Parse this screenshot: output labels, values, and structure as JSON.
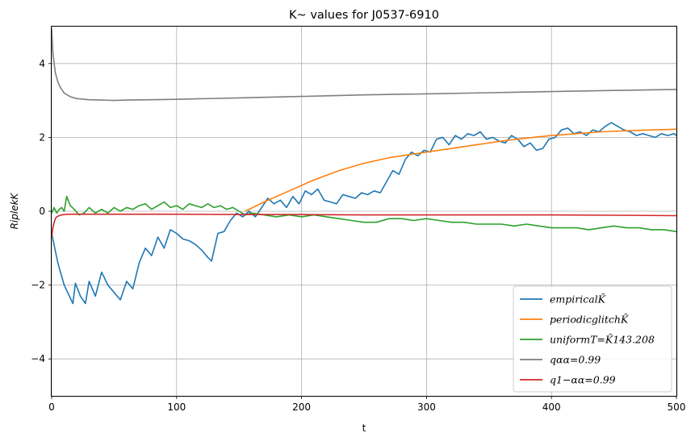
{
  "chart_data": {
    "type": "line",
    "title": "K~ values for J0537-6910",
    "xlabel": "t",
    "ylabel": "RiplekK",
    "xlim": [
      0,
      500
    ],
    "ylim": [
      -5,
      5
    ],
    "xticks": [
      "0",
      "100",
      "200",
      "300",
      "400",
      "500"
    ],
    "yticks": [
      "−4",
      "−2",
      "0",
      "2",
      "4"
    ],
    "grid": true,
    "legend_position": "bottom-right",
    "series": [
      {
        "name": "empiricalK̃",
        "color": "#1f77b4",
        "x": [
          0,
          5,
          10,
          17,
          19,
          23,
          27,
          30,
          35,
          40,
          45,
          50,
          55,
          60,
          65,
          70,
          75,
          80,
          85,
          90,
          95,
          100,
          105,
          110,
          115,
          120,
          125,
          128,
          133,
          138,
          143,
          148,
          153,
          158,
          163,
          168,
          173,
          178,
          183,
          188,
          193,
          198,
          203,
          208,
          213,
          218,
          223,
          228,
          233,
          238,
          243,
          248,
          253,
          258,
          263,
          268,
          273,
          278,
          283,
          288,
          293,
          298,
          303,
          308,
          313,
          318,
          323,
          328,
          333,
          338,
          343,
          348,
          353,
          358,
          363,
          368,
          373,
          378,
          383,
          388,
          393,
          398,
          403,
          408,
          413,
          418,
          423,
          428,
          433,
          438,
          443,
          448,
          453,
          458,
          463,
          468,
          473,
          478,
          483,
          488,
          493,
          498,
          500
        ],
        "y": [
          -0.6,
          -1.4,
          -2.0,
          -2.5,
          -1.95,
          -2.3,
          -2.5,
          -1.9,
          -2.3,
          -1.65,
          -2.0,
          -2.2,
          -2.4,
          -1.9,
          -2.1,
          -1.4,
          -1.0,
          -1.2,
          -0.7,
          -1.0,
          -0.5,
          -0.6,
          -0.75,
          -0.8,
          -0.9,
          -1.05,
          -1.25,
          -1.35,
          -0.6,
          -0.55,
          -0.25,
          -0.05,
          -0.15,
          0.0,
          -0.15,
          0.1,
          0.35,
          0.2,
          0.3,
          0.1,
          0.4,
          0.2,
          0.55,
          0.45,
          0.6,
          0.3,
          0.25,
          0.2,
          0.45,
          0.4,
          0.35,
          0.5,
          0.45,
          0.55,
          0.5,
          0.8,
          1.1,
          1.0,
          1.4,
          1.6,
          1.5,
          1.65,
          1.6,
          1.95,
          2.0,
          1.8,
          2.05,
          1.95,
          2.1,
          2.05,
          2.15,
          1.95,
          2.0,
          1.9,
          1.85,
          2.05,
          1.95,
          1.75,
          1.85,
          1.65,
          1.7,
          1.95,
          2.0,
          2.2,
          2.25,
          2.1,
          2.15,
          2.05,
          2.2,
          2.15,
          2.3,
          2.4,
          2.3,
          2.2,
          2.15,
          2.05,
          2.1,
          2.05,
          2.0,
          2.1,
          2.05,
          2.1,
          2.05
        ]
      },
      {
        "name": "periodicglitchK̃",
        "color": "#ff7f0e",
        "x": [
          155,
          170,
          190,
          210,
          230,
          250,
          270,
          290,
          300,
          320,
          340,
          360,
          380,
          400,
          420,
          440,
          460,
          480,
          500
        ],
        "y": [
          0.0,
          0.25,
          0.55,
          0.85,
          1.1,
          1.3,
          1.45,
          1.55,
          1.6,
          1.7,
          1.8,
          1.9,
          1.98,
          2.05,
          2.1,
          2.15,
          2.18,
          2.2,
          2.22
        ]
      },
      {
        "name": "uniformT=K̃143.208",
        "color": "#2ca02c",
        "x": [
          0,
          2,
          4,
          6,
          8,
          10,
          12,
          15,
          18,
          22,
          26,
          30,
          35,
          40,
          45,
          50,
          55,
          60,
          65,
          70,
          75,
          80,
          85,
          90,
          95,
          100,
          105,
          110,
          115,
          120,
          125,
          130,
          135,
          140,
          145,
          150,
          155,
          160,
          170,
          180,
          190,
          200,
          210,
          220,
          230,
          240,
          250,
          260,
          270,
          280,
          290,
          300,
          310,
          320,
          330,
          340,
          350,
          360,
          370,
          380,
          390,
          400,
          410,
          420,
          430,
          440,
          450,
          460,
          470,
          480,
          490,
          500
        ],
        "y": [
          -0.05,
          0.1,
          -0.05,
          0.05,
          0.1,
          0.0,
          0.4,
          0.15,
          0.05,
          -0.1,
          -0.05,
          0.1,
          -0.05,
          0.05,
          -0.05,
          0.1,
          0.0,
          0.1,
          0.05,
          0.15,
          0.2,
          0.05,
          0.15,
          0.25,
          0.1,
          0.15,
          0.05,
          0.2,
          0.15,
          0.1,
          0.2,
          0.1,
          0.15,
          0.05,
          0.1,
          0.0,
          -0.1,
          -0.05,
          -0.1,
          -0.15,
          -0.1,
          -0.15,
          -0.1,
          -0.15,
          -0.2,
          -0.25,
          -0.3,
          -0.3,
          -0.2,
          -0.2,
          -0.25,
          -0.2,
          -0.25,
          -0.3,
          -0.3,
          -0.35,
          -0.35,
          -0.35,
          -0.4,
          -0.35,
          -0.4,
          -0.45,
          -0.45,
          -0.45,
          -0.5,
          -0.45,
          -0.4,
          -0.45,
          -0.45,
          -0.5,
          -0.5,
          -0.55
        ]
      },
      {
        "name": "qαα=0.99",
        "color": "#7f7f7f",
        "x": [
          0,
          1,
          2,
          3,
          5,
          7,
          10,
          15,
          20,
          30,
          40,
          50,
          60,
          80,
          100,
          150,
          200,
          250,
          300,
          350,
          400,
          450,
          500
        ],
        "y": [
          4.95,
          4.3,
          4.0,
          3.75,
          3.5,
          3.35,
          3.2,
          3.1,
          3.05,
          3.02,
          3.01,
          3.0,
          3.01,
          3.02,
          3.03,
          3.07,
          3.11,
          3.15,
          3.18,
          3.21,
          3.24,
          3.27,
          3.3
        ]
      },
      {
        "name": "q1−αα=0.99",
        "color": "#d62728",
        "x": [
          0,
          1,
          2,
          3,
          4,
          6,
          8,
          10,
          15,
          20,
          50,
          100,
          150,
          200,
          250,
          300,
          350,
          400,
          450,
          500
        ],
        "y": [
          -0.7,
          -0.45,
          -0.3,
          -0.2,
          -0.15,
          -0.12,
          -0.1,
          -0.09,
          -0.08,
          -0.08,
          -0.08,
          -0.08,
          -0.09,
          -0.09,
          -0.1,
          -0.1,
          -0.1,
          -0.1,
          -0.11,
          -0.12
        ]
      }
    ]
  }
}
